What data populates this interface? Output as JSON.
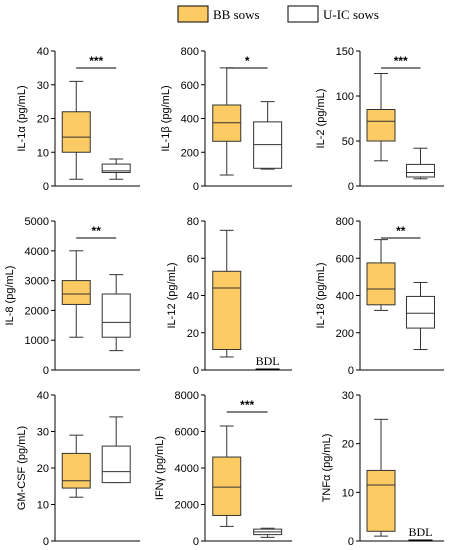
{
  "legend": {
    "items": [
      {
        "label": "BB sows",
        "color": "#FDCB63"
      },
      {
        "label": "U-IC sows",
        "color": "#FFFFFF"
      }
    ]
  },
  "chart_data": [
    {
      "type": "box",
      "ylabel": "IL-1α (pg/mL)",
      "ylim": [
        0,
        40
      ],
      "yticks": [
        0,
        10,
        20,
        30,
        40
      ],
      "significance": "***",
      "series": [
        {
          "name": "BB sows",
          "min": 2,
          "q1": 10,
          "median": 14.5,
          "q3": 22,
          "max": 31
        },
        {
          "name": "U-IC sows",
          "min": 2,
          "q1": 4,
          "median": 4.5,
          "q3": 6.5,
          "max": 8
        }
      ]
    },
    {
      "type": "box",
      "ylabel": "IL-1β (pg/mL)",
      "ylim": [
        0,
        800
      ],
      "yticks": [
        0,
        200,
        400,
        600,
        800
      ],
      "significance": "*",
      "series": [
        {
          "name": "BB sows",
          "min": 65,
          "q1": 265,
          "median": 375,
          "q3": 480,
          "max": 700
        },
        {
          "name": "U-IC sows",
          "min": 100,
          "q1": 105,
          "median": 245,
          "q3": 380,
          "max": 500
        }
      ]
    },
    {
      "type": "box",
      "ylabel": "IL-2 (pg/mL)",
      "ylim": [
        0,
        150
      ],
      "yticks": [
        0,
        50,
        100,
        150
      ],
      "significance": "***",
      "series": [
        {
          "name": "BB sows",
          "min": 28,
          "q1": 50,
          "median": 72,
          "q3": 85,
          "max": 125
        },
        {
          "name": "U-IC sows",
          "min": 8,
          "q1": 10,
          "median": 15,
          "q3": 24,
          "max": 42
        }
      ]
    },
    {
      "type": "box",
      "ylabel": "IL-8 (pg/mL)",
      "ylim": [
        0,
        5000
      ],
      "yticks": [
        0,
        1000,
        2000,
        3000,
        4000,
        5000
      ],
      "significance": "**",
      "series": [
        {
          "name": "BB sows",
          "min": 1100,
          "q1": 2200,
          "median": 2550,
          "q3": 3000,
          "max": 4000
        },
        {
          "name": "U-IC sows",
          "min": 650,
          "q1": 1100,
          "median": 1600,
          "q3": 2550,
          "max": 3200
        }
      ]
    },
    {
      "type": "box",
      "ylabel": "IL-12 (pg/mL)",
      "ylim": [
        0,
        80
      ],
      "yticks": [
        0,
        20,
        40,
        60,
        80
      ],
      "significance": "",
      "bdl": "BDL",
      "series": [
        {
          "name": "BB sows",
          "min": 7,
          "q1": 11,
          "median": 44,
          "q3": 53,
          "max": 75
        }
      ]
    },
    {
      "type": "box",
      "ylabel": "IL-18 (pg/mL)",
      "ylim": [
        0,
        800
      ],
      "yticks": [
        0,
        200,
        400,
        600,
        800
      ],
      "significance": "**",
      "series": [
        {
          "name": "BB sows",
          "min": 320,
          "q1": 350,
          "median": 435,
          "q3": 575,
          "max": 700
        },
        {
          "name": "U-IC sows",
          "min": 110,
          "q1": 225,
          "median": 305,
          "q3": 395,
          "max": 470
        }
      ]
    },
    {
      "type": "box",
      "ylabel": "GM-CSF (pg/mL)",
      "ylim": [
        0,
        40
      ],
      "yticks": [
        0,
        10,
        20,
        30,
        40
      ],
      "significance": "",
      "series": [
        {
          "name": "BB sows",
          "min": 12,
          "q1": 14.5,
          "median": 16.5,
          "q3": 24,
          "max": 29
        },
        {
          "name": "U-IC sows",
          "min": 16,
          "q1": 16,
          "median": 19,
          "q3": 26,
          "max": 34
        }
      ]
    },
    {
      "type": "box",
      "ylabel": "IFNγ (pg/mL)",
      "ylim": [
        0,
        8000
      ],
      "yticks": [
        0,
        2000,
        4000,
        6000,
        8000
      ],
      "significance": "***",
      "series": [
        {
          "name": "BB sows",
          "min": 800,
          "q1": 1400,
          "median": 2950,
          "q3": 4600,
          "max": 6300
        },
        {
          "name": "U-IC sows",
          "min": 200,
          "q1": 350,
          "median": 500,
          "q3": 650,
          "max": 700
        }
      ]
    },
    {
      "type": "box",
      "ylabel": "TNFα (pg/mL)",
      "ylim": [
        0,
        30
      ],
      "yticks": [
        0,
        10,
        20,
        30
      ],
      "significance": "",
      "bdl": "BDL",
      "series": [
        {
          "name": "BB sows",
          "min": 1,
          "q1": 2,
          "median": 11.5,
          "q3": 14.5,
          "max": 25
        }
      ]
    }
  ]
}
